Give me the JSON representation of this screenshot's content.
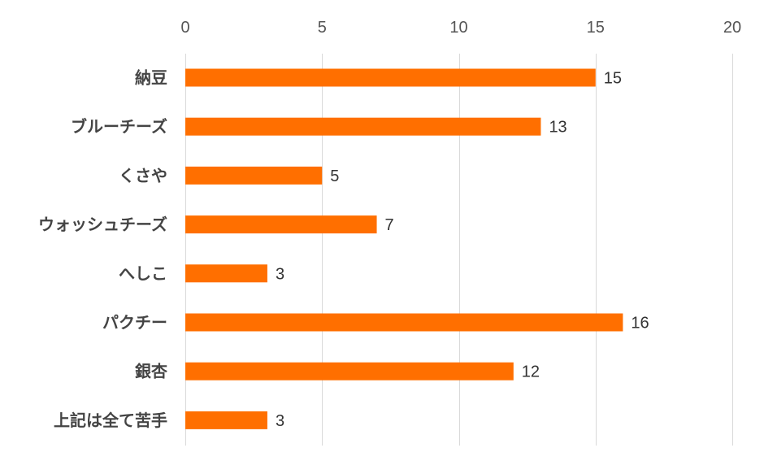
{
  "chart_data": {
    "type": "bar",
    "orientation": "horizontal",
    "categories": [
      "納豆",
      "ブルーチーズ",
      "くさや",
      "ウォッシュチーズ",
      "へしこ",
      "パクチー",
      "銀杏",
      "上記は全て苦手"
    ],
    "values": [
      15,
      13,
      5,
      7,
      3,
      16,
      12,
      3
    ],
    "xlim": [
      0,
      20
    ],
    "x_ticks": [
      0,
      5,
      10,
      15,
      20
    ],
    "x_axis_position": "top",
    "grid": true,
    "data_labels": true,
    "legend": "none",
    "bar_color": "#FF6F00",
    "title": "",
    "xlabel": "",
    "ylabel": ""
  }
}
